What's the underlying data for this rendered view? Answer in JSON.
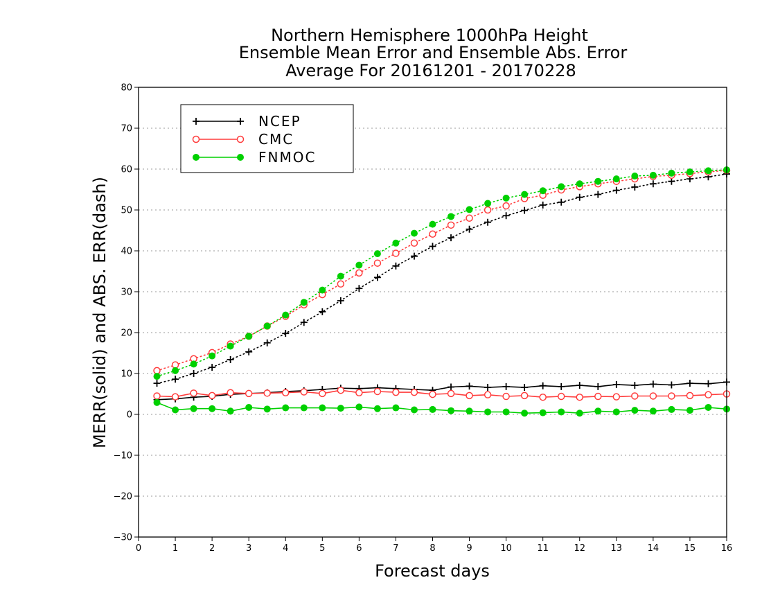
{
  "chart_data": {
    "type": "line",
    "title_lines": [
      "Northern Hemisphere 1000hPa Height",
      "Ensemble Mean Error and Ensemble Abs. Error",
      "Average For 20161201 - 20170228"
    ],
    "xlabel": "Forecast days",
    "ylabel": "MERR(solid) and ABS. ERR(dash)",
    "xlim": [
      0,
      16
    ],
    "ylim": [
      -30,
      80
    ],
    "xticks": [
      0,
      1,
      2,
      3,
      4,
      5,
      6,
      7,
      8,
      9,
      10,
      11,
      12,
      13,
      14,
      15,
      16
    ],
    "yticks": [
      -30,
      -20,
      -10,
      0,
      10,
      20,
      30,
      40,
      50,
      60,
      70,
      80
    ],
    "grid": "horizontal dotted",
    "legend_position": "top-left",
    "x": [
      0.5,
      1.0,
      1.5,
      2.0,
      2.5,
      3.0,
      3.5,
      4.0,
      4.5,
      5.0,
      5.5,
      6.0,
      6.5,
      7.0,
      7.5,
      8.0,
      8.5,
      9.0,
      9.5,
      10.0,
      10.5,
      11.0,
      11.5,
      12.0,
      12.5,
      13.0,
      13.5,
      14.0,
      14.5,
      15.0,
      15.5,
      16.0
    ],
    "series": [
      {
        "name": "NCEP",
        "color": "#000000",
        "marker": "plus",
        "merr": [
          3.6,
          3.8,
          4.2,
          4.4,
          4.9,
          5.1,
          5.3,
          5.6,
          5.8,
          6.1,
          6.4,
          6.3,
          6.5,
          6.3,
          6.1,
          5.9,
          6.7,
          6.9,
          6.6,
          6.8,
          6.6,
          7.0,
          6.8,
          7.1,
          6.8,
          7.3,
          7.1,
          7.4,
          7.2,
          7.6,
          7.5,
          7.9
        ],
        "abs_err": [
          7.6,
          8.6,
          10.0,
          11.5,
          13.4,
          15.3,
          17.5,
          19.8,
          22.5,
          25.1,
          27.8,
          30.8,
          33.5,
          36.3,
          38.7,
          41.1,
          43.2,
          45.3,
          47.0,
          48.6,
          49.9,
          51.2,
          51.9,
          53.1,
          53.8,
          54.8,
          55.6,
          56.4,
          57.0,
          57.6,
          58.1,
          58.8
        ]
      },
      {
        "name": "CMC",
        "color": "#ff3c3c",
        "marker": "open-circle",
        "merr": [
          4.5,
          4.3,
          5.2,
          4.6,
          5.3,
          5.1,
          5.2,
          5.3,
          5.5,
          5.1,
          5.9,
          5.3,
          5.6,
          5.4,
          5.4,
          4.9,
          5.1,
          4.6,
          4.8,
          4.4,
          4.6,
          4.2,
          4.4,
          4.2,
          4.4,
          4.3,
          4.5,
          4.5,
          4.5,
          4.6,
          4.8,
          5.0
        ],
        "abs_err": [
          10.7,
          12.1,
          13.6,
          15.1,
          17.2,
          19.1,
          21.6,
          24.0,
          26.8,
          29.3,
          31.9,
          34.6,
          37.0,
          39.4,
          41.9,
          44.1,
          46.3,
          48.0,
          50.0,
          51.0,
          52.8,
          53.6,
          54.9,
          55.7,
          56.4,
          57.0,
          57.6,
          58.2,
          58.5,
          58.9,
          59.3,
          59.7
        ]
      },
      {
        "name": "FNMOC",
        "color": "#00d000",
        "marker": "filled-circle",
        "merr": [
          2.9,
          1.1,
          1.4,
          1.4,
          0.8,
          1.7,
          1.3,
          1.6,
          1.6,
          1.6,
          1.5,
          1.8,
          1.4,
          1.6,
          1.1,
          1.2,
          0.9,
          0.8,
          0.6,
          0.6,
          0.3,
          0.4,
          0.6,
          0.3,
          0.8,
          0.6,
          1.0,
          0.8,
          1.2,
          1.0,
          1.7,
          1.3
        ],
        "abs_err": [
          9.3,
          10.7,
          12.3,
          14.3,
          16.7,
          19.1,
          21.6,
          24.3,
          27.4,
          30.4,
          33.8,
          36.5,
          39.3,
          41.9,
          44.3,
          46.5,
          48.4,
          50.1,
          51.6,
          52.9,
          53.8,
          54.7,
          55.7,
          56.4,
          57.0,
          57.6,
          58.3,
          58.5,
          59.0,
          59.3,
          59.6,
          59.8
        ]
      }
    ]
  }
}
